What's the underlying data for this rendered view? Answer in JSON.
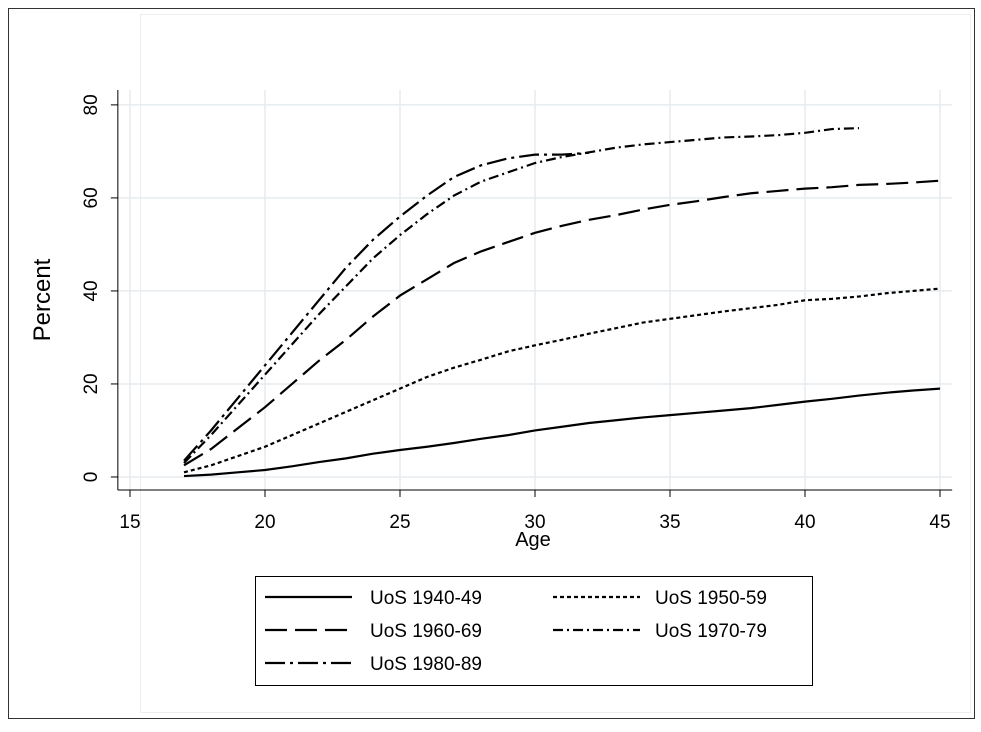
{
  "chart_data": {
    "type": "line",
    "xlabel": "Age",
    "ylabel": "Percent",
    "x": [
      17,
      18,
      19,
      20,
      21,
      22,
      23,
      24,
      25,
      26,
      27,
      28,
      29,
      30,
      31,
      32,
      33,
      34,
      35,
      36,
      37,
      38,
      39,
      40,
      41,
      42,
      43,
      44,
      45
    ],
    "series": [
      {
        "name": "UoS 1940-49",
        "color": "#000000",
        "dash": "solid",
        "values": [
          0.2,
          0.5,
          1,
          1.5,
          2.3,
          3.2,
          4,
          5,
          5.8,
          6.5,
          7.3,
          8.2,
          9,
          10,
          10.8,
          11.6,
          12.2,
          12.8,
          13.3,
          13.8,
          14.3,
          14.8,
          15.5,
          16.2,
          16.8,
          17.5,
          18.1,
          18.6,
          19
        ]
      },
      {
        "name": "UoS 1950-59",
        "color": "#000000",
        "dash": "shortdash",
        "values": [
          1,
          2.5,
          4.5,
          6.5,
          9,
          11.5,
          14,
          16.5,
          19,
          21.5,
          23.5,
          25.2,
          27,
          28.3,
          29.5,
          30.8,
          32,
          33.2,
          34,
          34.8,
          35.6,
          36.3,
          37,
          38,
          38.3,
          38.8,
          39.5,
          40,
          40.5
        ]
      },
      {
        "name": "UoS 1960-69",
        "color": "#000000",
        "dash": "longdash",
        "values": [
          2.5,
          6,
          10.5,
          15,
          20,
          25,
          29.5,
          34.5,
          39,
          42.5,
          46,
          48.5,
          50.5,
          52.5,
          54,
          55.3,
          56.3,
          57.5,
          58.5,
          59.3,
          60.2,
          61,
          61.5,
          62,
          62.3,
          62.8,
          63,
          63.3,
          63.7
        ]
      },
      {
        "name": "UoS 1970-79",
        "color": "#000000",
        "dash": "shortdash_dot",
        "values": [
          3,
          9,
          15.5,
          22,
          28.5,
          35,
          41,
          47,
          52,
          56.5,
          60.5,
          63.5,
          65.5,
          67.5,
          68.8,
          69.8,
          70.8,
          71.5,
          72,
          72.5,
          73,
          73.2,
          73.5,
          74,
          74.8,
          75,
          null,
          null,
          null
        ]
      },
      {
        "name": "UoS 1980-89",
        "color": "#000000",
        "dash": "longdash_dot",
        "values": [
          3.5,
          10,
          17,
          24,
          31,
          38,
          45,
          51,
          56,
          60.5,
          64.5,
          67,
          68.5,
          69.3,
          69.3,
          69.7,
          null,
          null,
          null,
          null,
          null,
          null,
          null,
          null,
          null,
          null,
          null,
          null,
          null
        ]
      }
    ],
    "xlim": [
      14.55,
      45.45
    ],
    "xticks": [
      15,
      20,
      25,
      30,
      35,
      40,
      45
    ],
    "ylim": [
      -2.8,
      83.2
    ],
    "yticks": [
      0,
      20,
      40,
      60,
      80
    ],
    "grid": true,
    "legend": "bottom"
  }
}
